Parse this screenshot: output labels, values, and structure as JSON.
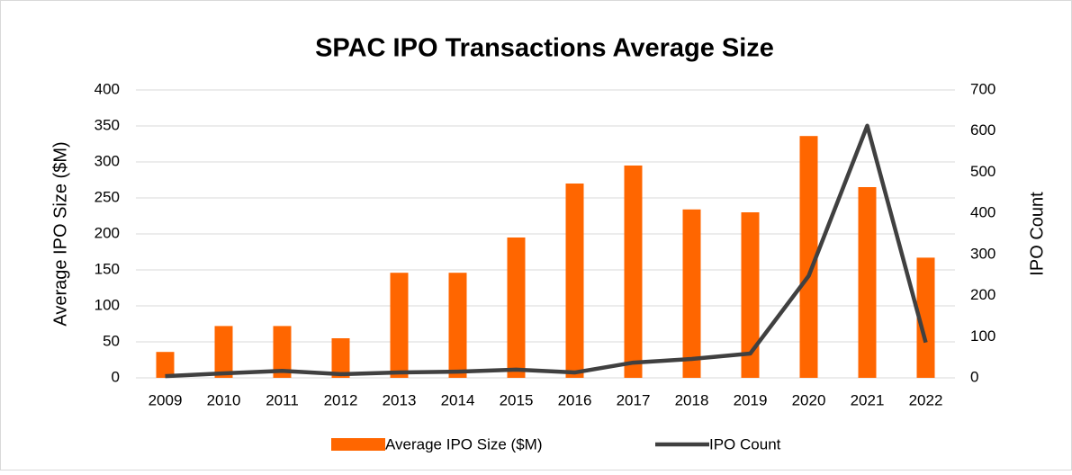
{
  "chart_data": {
    "type": "bar-line",
    "title": "SPAC IPO Transactions Average Size",
    "y_label": "Average IPO Size ($M)",
    "y2_label": "IPO Count",
    "categories": [
      "2009",
      "2010",
      "2011",
      "2012",
      "2013",
      "2014",
      "2015",
      "2016",
      "2017",
      "2018",
      "2019",
      "2020",
      "2021",
      "2022"
    ],
    "series": [
      {
        "name": "Average IPO Size ($M)",
        "type": "bar",
        "color": "#ff6600",
        "axis": "y",
        "values": [
          36,
          72,
          72,
          55,
          146,
          146,
          195,
          270,
          295,
          234,
          230,
          336,
          265,
          167
        ]
      },
      {
        "name": "IPO Count",
        "type": "line",
        "color": "#404040",
        "axis": "y2",
        "values": [
          4,
          11,
          17,
          9,
          13,
          15,
          20,
          13,
          37,
          46,
          59,
          248,
          613,
          86
        ]
      }
    ],
    "ylim": [
      0,
      400
    ],
    "yticks": [
      0,
      50,
      100,
      150,
      200,
      250,
      300,
      350,
      400
    ],
    "y2lim": [
      0,
      700
    ],
    "y2ticks": [
      0,
      100,
      200,
      300,
      400,
      500,
      600,
      700
    ],
    "grid": true,
    "legend": "bottom"
  }
}
